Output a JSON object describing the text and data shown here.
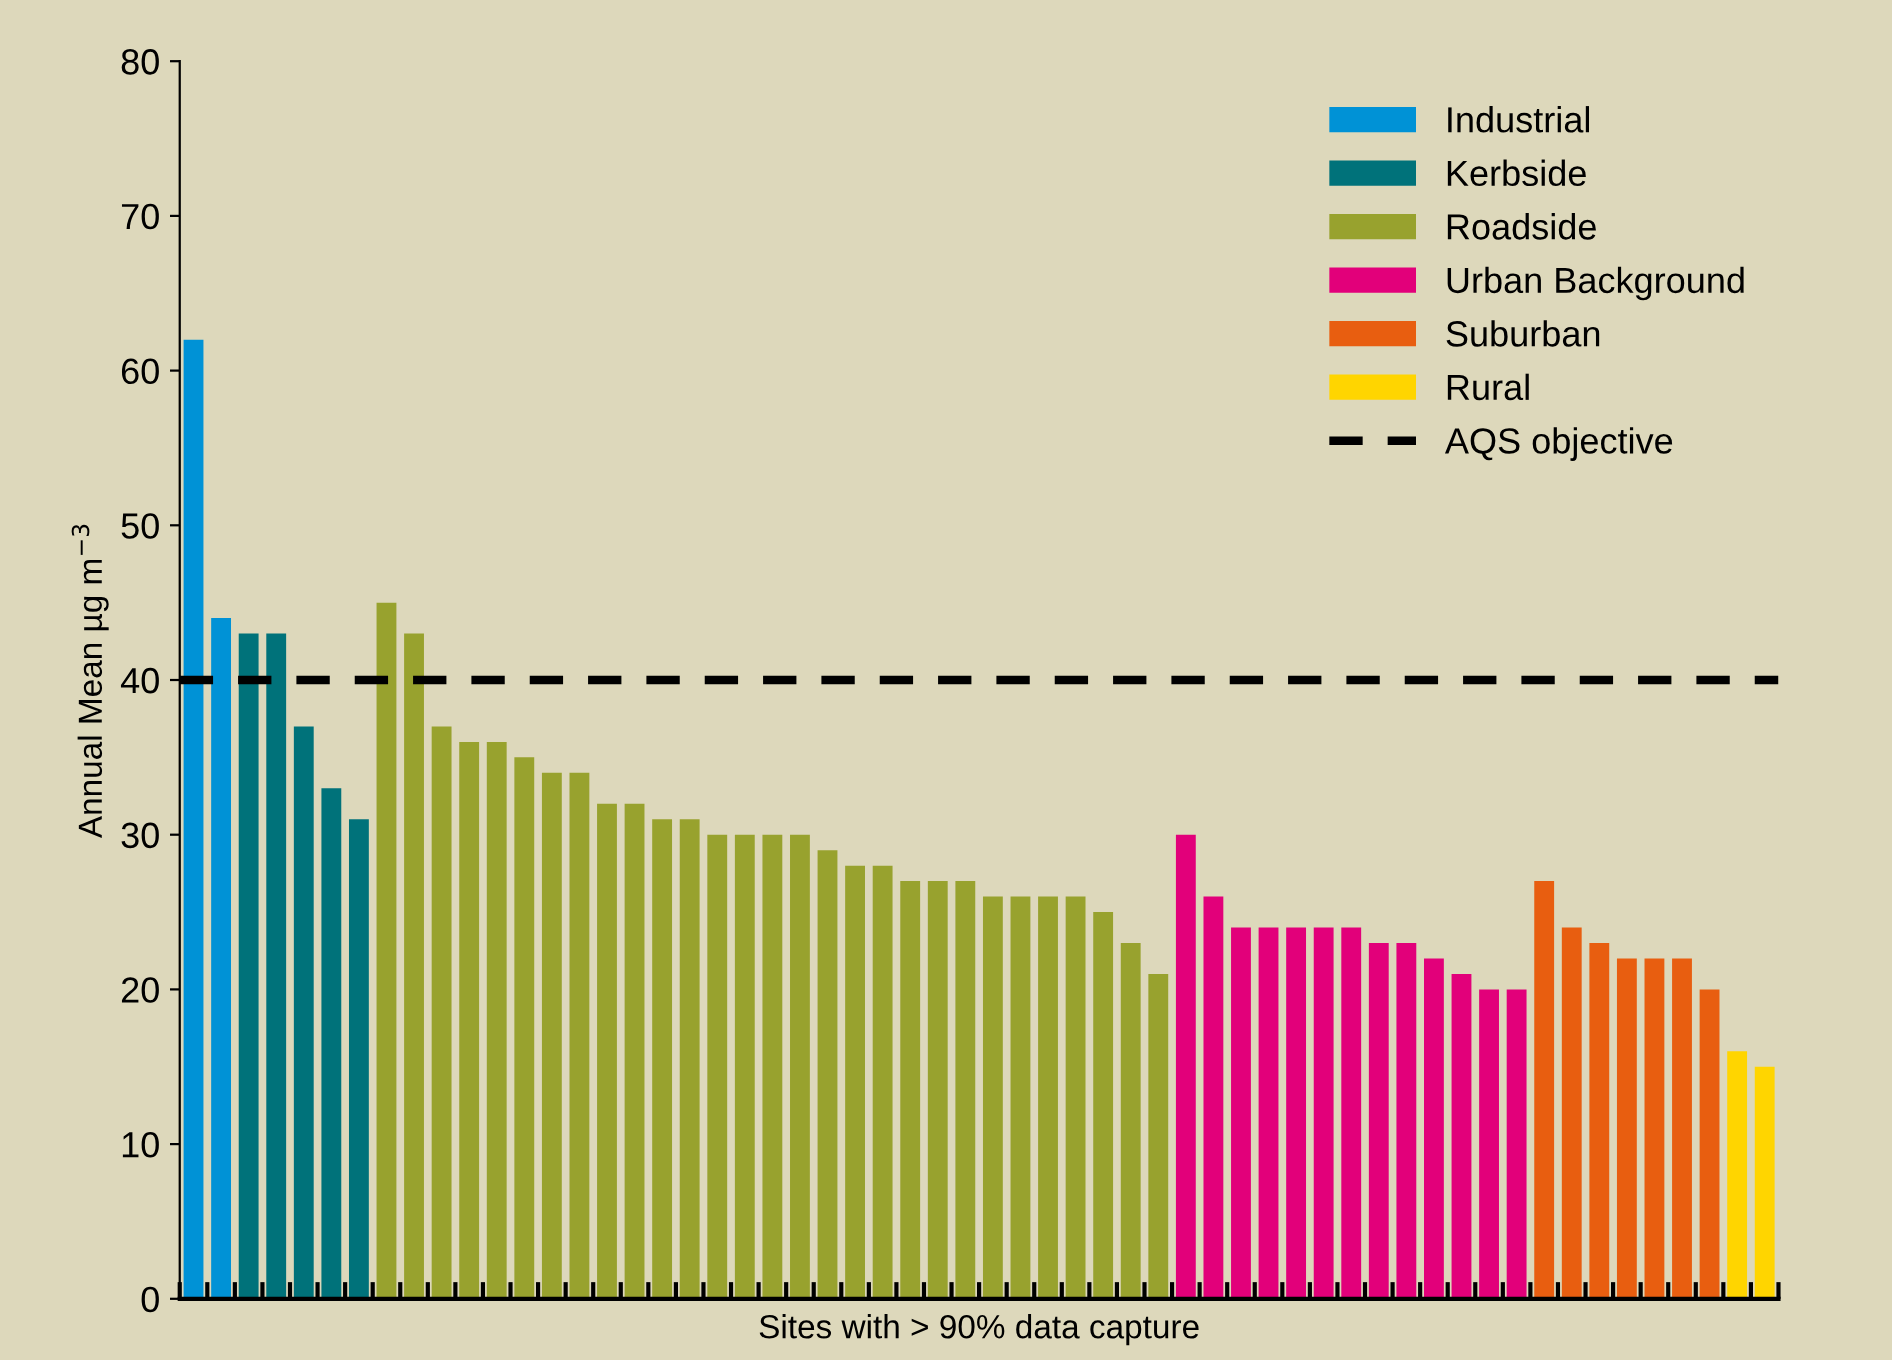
{
  "chart_data": {
    "type": "bar",
    "xlabel": "Sites with > 90% data capture",
    "ylabel": "Annual Mean µg m$^{−3}$",
    "categories": [
      null,
      null,
      null,
      null,
      null,
      null,
      null,
      null,
      null,
      null,
      null,
      null,
      null,
      null,
      null,
      null,
      null,
      null,
      null,
      null,
      null,
      null,
      null,
      null,
      null,
      null,
      null,
      null,
      null,
      null,
      null,
      null,
      null,
      null,
      null,
      null,
      null,
      null,
      null,
      null,
      null,
      null,
      null,
      null,
      null,
      null,
      null,
      null,
      null,
      null,
      null,
      null,
      null,
      null,
      null,
      null,
      null,
      null
    ],
    "series": [
      {
        "name": "Industrial",
        "color": "#0092d6",
        "values": [
          62,
          44,
          null,
          null,
          null,
          null,
          null,
          null,
          null,
          null,
          null,
          null,
          null,
          null,
          null,
          null,
          null,
          null,
          null,
          null,
          null,
          null,
          null,
          null,
          null,
          null,
          null,
          null,
          null,
          null,
          null,
          null,
          null,
          null,
          null,
          null,
          null,
          null,
          null,
          null,
          null,
          null,
          null,
          null,
          null,
          null,
          null,
          null,
          null,
          null,
          null,
          null,
          null,
          null,
          null,
          null,
          null,
          null
        ]
      },
      {
        "name": "Kerbside",
        "color": "#00727a",
        "values": [
          null,
          null,
          43,
          43,
          37,
          33,
          31,
          null,
          null,
          null,
          null,
          null,
          null,
          null,
          null,
          null,
          null,
          null,
          null,
          null,
          null,
          null,
          null,
          null,
          null,
          null,
          null,
          null,
          null,
          null,
          null,
          null,
          null,
          null,
          null,
          null,
          null,
          null,
          null,
          null,
          null,
          null,
          null,
          null,
          null,
          null,
          null,
          null,
          null,
          null,
          null,
          null,
          null,
          null,
          null,
          null,
          null,
          null
        ]
      },
      {
        "name": "Roadside",
        "color": "#98a22e",
        "values": [
          null,
          null,
          null,
          null,
          null,
          null,
          null,
          45,
          43,
          37,
          36,
          36,
          35,
          34,
          34,
          32,
          32,
          31,
          31,
          30,
          30,
          30,
          30,
          29,
          28,
          28,
          27,
          27,
          27,
          26,
          26,
          26,
          26,
          25,
          23,
          21,
          null,
          null,
          null,
          null,
          null,
          null,
          null,
          null,
          null,
          null,
          null,
          null,
          null,
          null,
          null,
          null,
          null,
          null,
          null,
          null,
          null,
          null
        ]
      },
      {
        "name": "Urban Background",
        "color": "#e2007a",
        "values": [
          null,
          null,
          null,
          null,
          null,
          null,
          null,
          null,
          null,
          null,
          null,
          null,
          null,
          null,
          null,
          null,
          null,
          null,
          null,
          null,
          null,
          null,
          null,
          null,
          null,
          null,
          null,
          null,
          null,
          null,
          null,
          null,
          null,
          null,
          null,
          null,
          30,
          26,
          24,
          24,
          24,
          24,
          24,
          23,
          23,
          22,
          21,
          20,
          20,
          null,
          null,
          null,
          null,
          null,
          null,
          null,
          null,
          null
        ]
      },
      {
        "name": "Suburban",
        "color": "#e85e10",
        "values": [
          null,
          null,
          null,
          null,
          null,
          null,
          null,
          null,
          null,
          null,
          null,
          null,
          null,
          null,
          null,
          null,
          null,
          null,
          null,
          null,
          null,
          null,
          null,
          null,
          null,
          null,
          null,
          null,
          null,
          null,
          null,
          null,
          null,
          null,
          null,
          null,
          null,
          null,
          null,
          null,
          null,
          null,
          null,
          null,
          null,
          null,
          null,
          null,
          null,
          27,
          24,
          23,
          22,
          22,
          22,
          20,
          null,
          null
        ]
      },
      {
        "name": "Rural",
        "color": "#ffd500",
        "values": [
          null,
          null,
          null,
          null,
          null,
          null,
          null,
          null,
          null,
          null,
          null,
          null,
          null,
          null,
          null,
          null,
          null,
          null,
          null,
          null,
          null,
          null,
          null,
          null,
          null,
          null,
          null,
          null,
          null,
          null,
          null,
          null,
          null,
          null,
          null,
          null,
          null,
          null,
          null,
          null,
          null,
          null,
          null,
          null,
          null,
          null,
          null,
          null,
          null,
          null,
          null,
          null,
          null,
          null,
          null,
          null,
          16,
          15
        ]
      }
    ],
    "ylim": [
      0,
      80
    ],
    "yticks": [
      0,
      10,
      20,
      30,
      40,
      50,
      60,
      70,
      80
    ],
    "ref_lines": [
      {
        "axis": "y",
        "value": 40,
        "label": "AQS objective",
        "color": "#000000",
        "line_style": "dashed"
      }
    ],
    "legend": "top right",
    "grid": false
  }
}
